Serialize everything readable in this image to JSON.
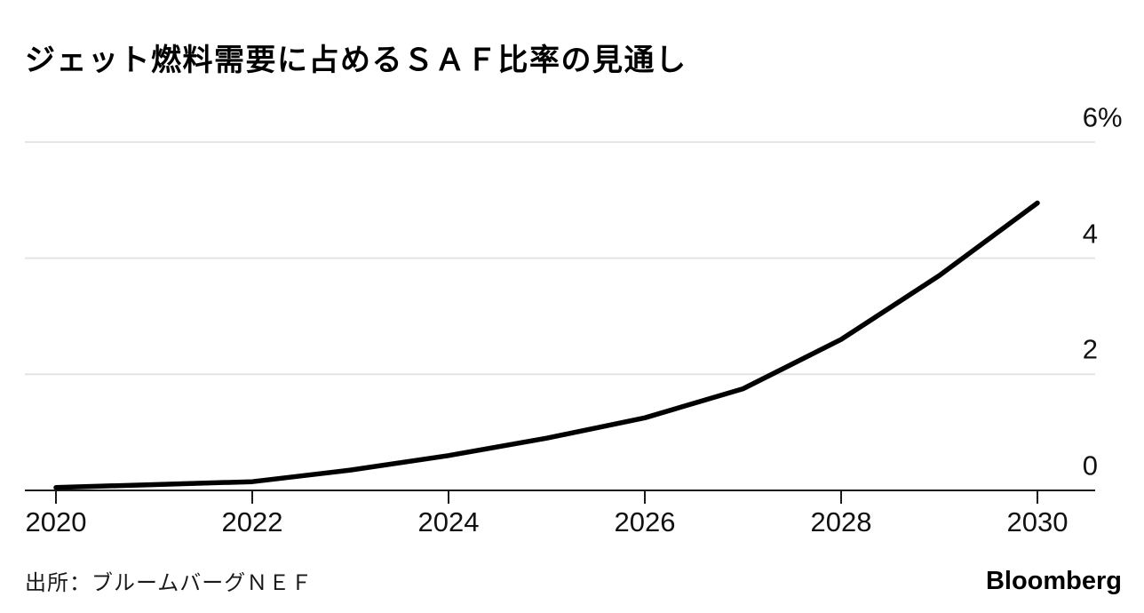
{
  "header": {
    "title": "ジェット燃料需要に占めるＳＡＦ比率の見通し"
  },
  "footer": {
    "source": "出所：ブルームバーグＮＥＦ",
    "brand": "Bloomberg"
  },
  "chart_data": {
    "type": "line",
    "title": "ジェット燃料需要に占めるＳＡＦ比率の見通し",
    "series_name": "ジェット燃料需要に占めるＳＡＦ比率",
    "x": [
      2020,
      2021,
      2022,
      2023,
      2024,
      2025,
      2026,
      2027,
      2028,
      2029,
      2030
    ],
    "values": [
      0.05,
      0.1,
      0.15,
      0.35,
      0.6,
      0.9,
      1.25,
      1.75,
      2.6,
      3.7,
      4.95
    ],
    "unit": "%",
    "xlim": [
      2020,
      2030
    ],
    "ylim": [
      0,
      6
    ],
    "x_ticks": [
      {
        "value": 2020,
        "label": "2020"
      },
      {
        "value": 2022,
        "label": "2022"
      },
      {
        "value": 2024,
        "label": "2024"
      },
      {
        "value": 2026,
        "label": "2026"
      },
      {
        "value": 2028,
        "label": "2028"
      },
      {
        "value": 2030,
        "label": "2030"
      }
    ],
    "y_ticks": [
      {
        "value": 6,
        "label": "6",
        "suffix": "%"
      },
      {
        "value": 4,
        "label": "4",
        "suffix": ""
      },
      {
        "value": 2,
        "label": "2",
        "suffix": ""
      },
      {
        "value": 0,
        "label": "0",
        "suffix": ""
      }
    ],
    "grid": "horizontal",
    "legend": "none",
    "line_color": "#000000",
    "grid_color": "#e4e4e4",
    "axis_color": "#1a1a1a",
    "background_color": "#ffffff"
  }
}
